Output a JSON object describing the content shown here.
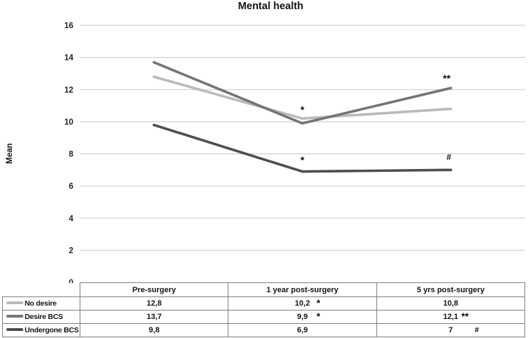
{
  "chart_data": {
    "type": "line",
    "title": "Mental health",
    "ylabel": "Mean",
    "xlabel": "",
    "ylim": [
      0,
      16
    ],
    "ytick_step": 2,
    "grid": true,
    "legend_position": "table-left",
    "categories": [
      "Pre-surgery",
      "1 year post-surgery",
      "5 yrs post-surgery"
    ],
    "series": [
      {
        "name": "No desire",
        "color": "#bababa",
        "values": [
          12.8,
          10.2,
          10.8
        ],
        "display": [
          "12,8",
          "10,2",
          "10,8"
        ],
        "markers": [
          "",
          "*",
          ""
        ]
      },
      {
        "name": "Desire BCS",
        "color": "#757575",
        "values": [
          13.7,
          9.9,
          12.1
        ],
        "display": [
          "13,7",
          "9,9",
          "12,1"
        ],
        "markers": [
          "",
          "*",
          "**"
        ]
      },
      {
        "name": "Undergone BCS",
        "color": "#4e4e4e",
        "values": [
          9.8,
          6.9,
          7
        ],
        "display": [
          "9,8",
          "6,9",
          "7"
        ],
        "markers": [
          "",
          "",
          "#"
        ]
      }
    ],
    "annotations": [
      {
        "text": "*",
        "category": 1,
        "y": 10.9
      },
      {
        "text": "*",
        "category": 1,
        "y": 7.75
      },
      {
        "text": "**",
        "category": 2,
        "y": 12.85,
        "dx": -6
      },
      {
        "text": "#",
        "category": 2,
        "y": 7.85,
        "dx": -3
      }
    ],
    "colors": {
      "gridline": "#c7c7c7",
      "table_border": "#7f7f7f",
      "text": "#141414"
    }
  }
}
